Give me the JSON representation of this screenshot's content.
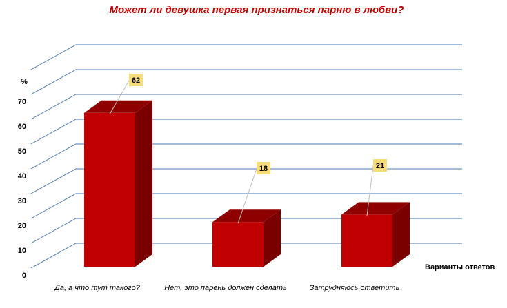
{
  "chart_data": {
    "type": "bar",
    "title": "Может ли девушка первая признаться парню в любви?",
    "ylabel": "%",
    "xlabel": "Варианты ответов",
    "categories": [
      "Да, а что тут такого?",
      "Нет, это парень должен сделать",
      "Затрудняюсь ответить"
    ],
    "values": [
      62,
      18,
      21
    ],
    "ylim": [
      0,
      80
    ],
    "yticks": [
      0,
      10,
      20,
      30,
      40,
      50,
      60,
      70
    ],
    "grid": true,
    "legend": "none",
    "style": "3d",
    "colors": {
      "bar_front": "#c00000",
      "bar_side": "#7a0000",
      "bar_top": "#8e0000",
      "gridline": "#4a7ab0",
      "label_box": "#f7dc7a",
      "title": "#c00000"
    }
  }
}
